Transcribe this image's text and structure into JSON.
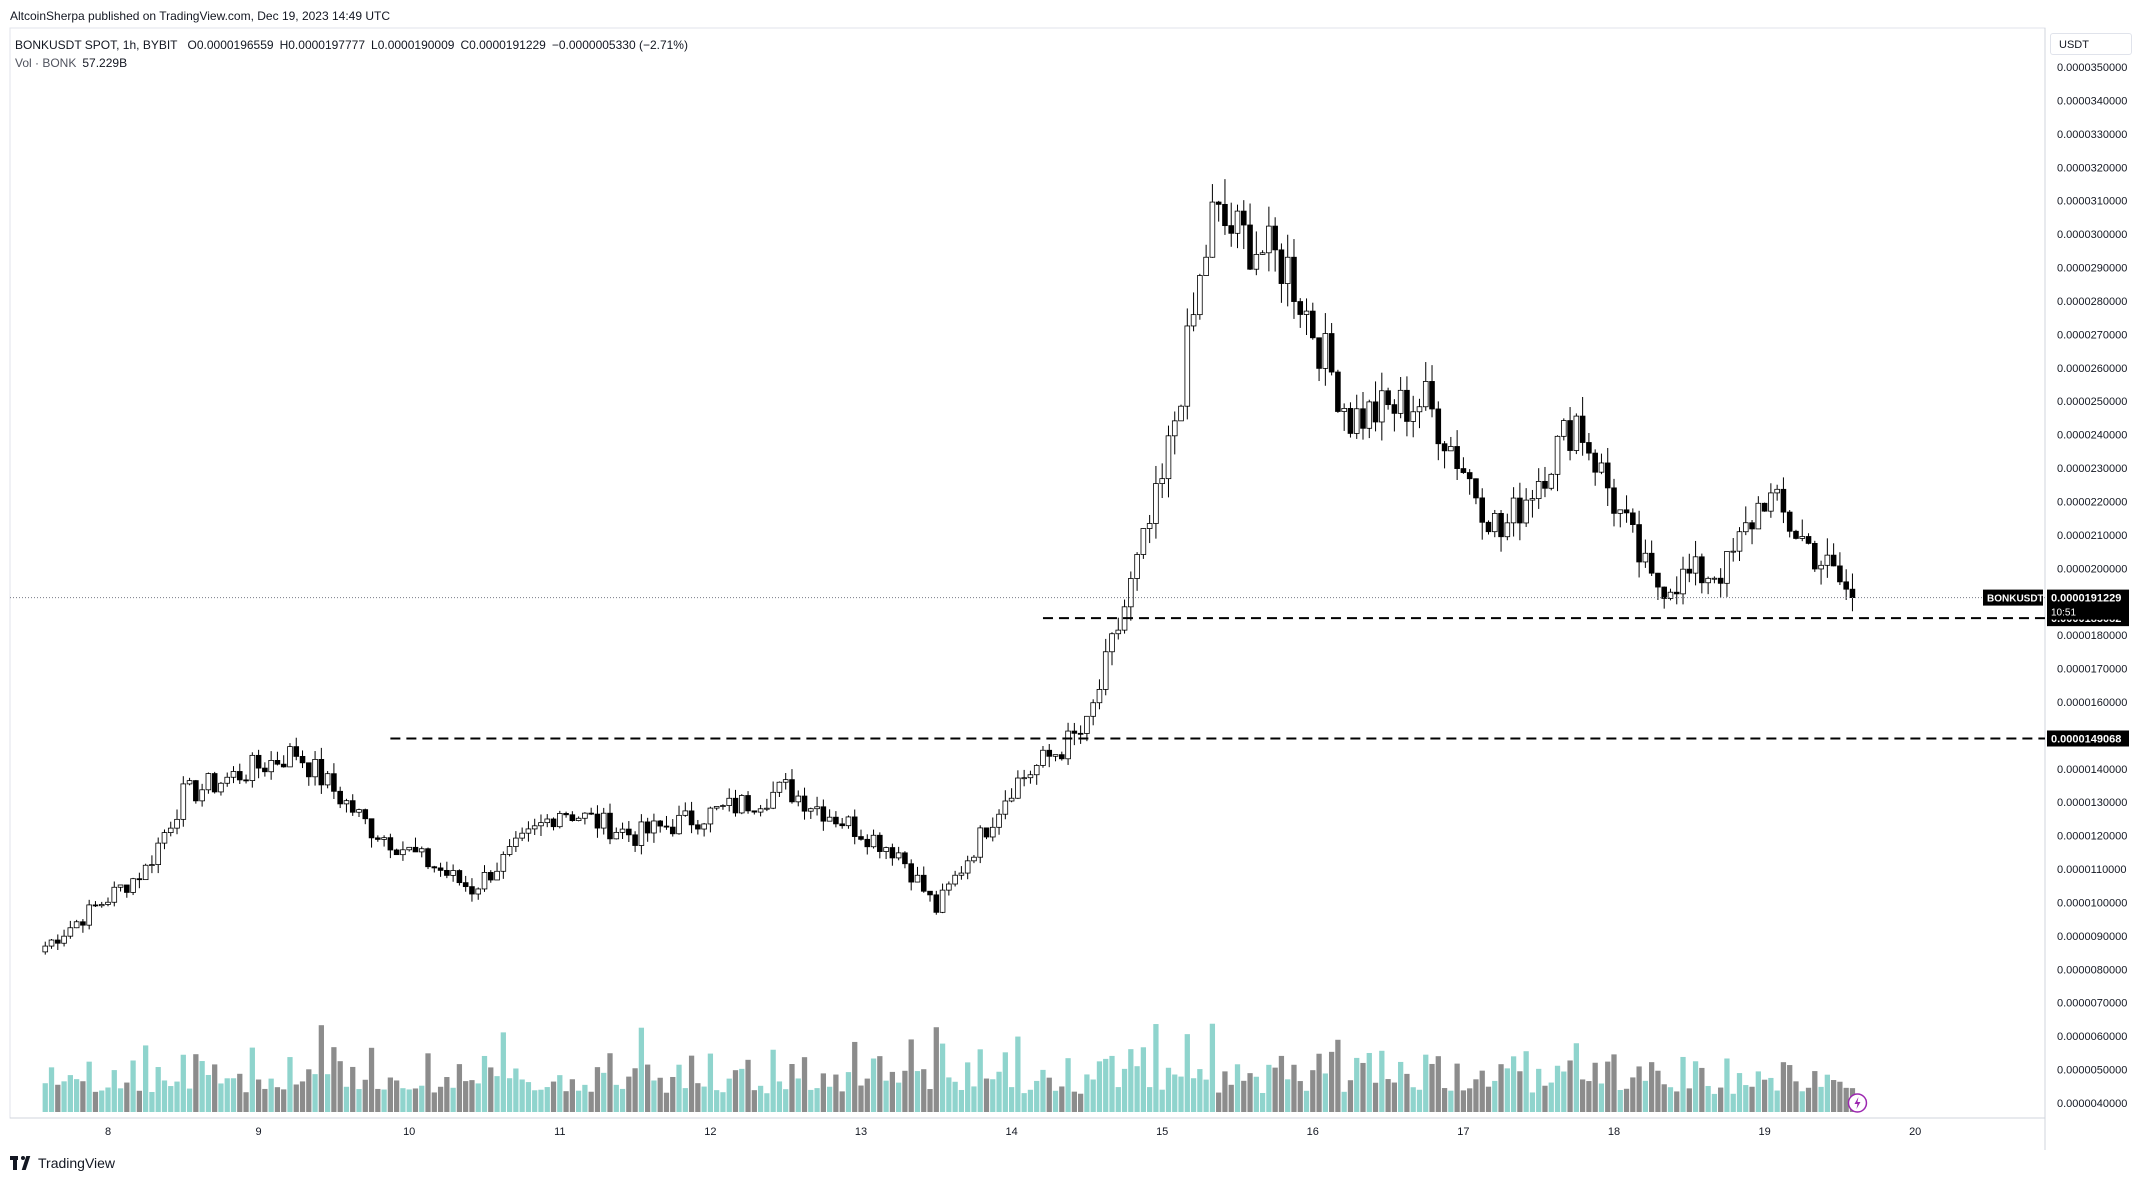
{
  "publisher_line": "AltcoinSherpa published on TradingView.com, Dec 19, 2023 14:49 UTC",
  "legend": {
    "symbol": "BONKUSDT SPOT, 1h, BYBIT",
    "open": "O0.0000196559",
    "high": "H0.0000197777",
    "low": "L0.0000190009",
    "close": "C0.0000191229",
    "change": "−0.0000005330 (−2.71%)",
    "volume_label": "Vol · BONK",
    "volume_value": "57.229B"
  },
  "currency_label": "USDT",
  "footer_brand": "TradingView",
  "price_tag": {
    "symbol": "BONKUSDT",
    "price": "0.0000191229",
    "countdown": "10:51"
  },
  "levels": [
    {
      "label": "0.0000185082",
      "value": 1.85082e-05
    },
    {
      "label": "0.0000149068",
      "value": 1.49068e-05
    }
  ],
  "colors": {
    "up": "#ffffff",
    "down": "#000000",
    "vol_up": "#8fd4cd",
    "vol_down": "#8c8c8c",
    "grid": "#f0f3fa",
    "axis_text": "#131722",
    "event_icon": "#9c27b0"
  },
  "chart_data": {
    "type": "candlestick",
    "title": "BONKUSDT SPOT, 1h, BYBIT",
    "xlabel": "",
    "ylabel": "",
    "x_ticks": [
      "8",
      "9",
      "10",
      "11",
      "12",
      "13",
      "14",
      "15",
      "16",
      "17",
      "18",
      "19",
      "20"
    ],
    "y_ticks": [
      "0.0000350000",
      "0.0000340000",
      "0.0000330000",
      "0.0000320000",
      "0.0000310000",
      "0.0000300000",
      "0.0000290000",
      "0.0000280000",
      "0.0000270000",
      "0.0000260000",
      "0.0000250000",
      "0.0000240000",
      "0.0000230000",
      "0.0000220000",
      "0.0000210000",
      "0.0000200000",
      "0.0000190000",
      "0.0000180000",
      "0.0000170000",
      "0.0000160000",
      "0.0000150000",
      "0.0000140000",
      "0.0000130000",
      "0.0000120000",
      "0.0000110000",
      "0.0000100000",
      "0.0000090000",
      "0.0000080000",
      "0.0000070000",
      "0.0000060000",
      "0.0000050000",
      "0.0000040000"
    ],
    "ylim": [
      3.7e-06,
      3.53e-05
    ],
    "series_close_keypoints": [
      {
        "x": "Dec 7 14:00",
        "close": 8.7e-06
      },
      {
        "x": "Dec 8 06:00",
        "close": 1.1e-05
      },
      {
        "x": "Dec 8 12:00",
        "close": 1.32e-05
      },
      {
        "x": "Dec 9 06:00",
        "close": 1.45e-05
      },
      {
        "x": "Dec 9 18:00",
        "close": 1.22e-05
      },
      {
        "x": "Dec 10 10:00",
        "close": 1.04e-05
      },
      {
        "x": "Dec 11 00:00",
        "close": 1.28e-05
      },
      {
        "x": "Dec 11 12:00",
        "close": 1.2e-05
      },
      {
        "x": "Dec 12 06:00",
        "close": 1.3e-05
      },
      {
        "x": "Dec 12 12:00",
        "close": 1.34e-05
      },
      {
        "x": "Dec 13 06:00",
        "close": 1.15e-05
      },
      {
        "x": "Dec 13 12:00",
        "close": 9.8e-06
      },
      {
        "x": "Dec 14 00:00",
        "close": 1.35e-05
      },
      {
        "x": "Dec 14 12:00",
        "close": 1.52e-05
      },
      {
        "x": "Dec 15 00:00",
        "close": 2.25e-05
      },
      {
        "x": "Dec 15 08:00",
        "close": 3.05e-05
      },
      {
        "x": "Dec 15 20:00",
        "close": 2.9e-05
      },
      {
        "x": "Dec 16 06:00",
        "close": 2.45e-05
      },
      {
        "x": "Dec 16 18:00",
        "close": 2.5e-05
      },
      {
        "x": "Dec 17 06:00",
        "close": 2.1e-05
      },
      {
        "x": "Dec 17 18:00",
        "close": 2.45e-05
      },
      {
        "x": "Dec 18 06:00",
        "close": 1.95e-05
      },
      {
        "x": "Dec 18 18:00",
        "close": 2e-05
      },
      {
        "x": "Dec 19 00:00",
        "close": 2.22e-05
      },
      {
        "x": "Dec 19 14:00",
        "close": 1.91229e-05
      }
    ]
  }
}
